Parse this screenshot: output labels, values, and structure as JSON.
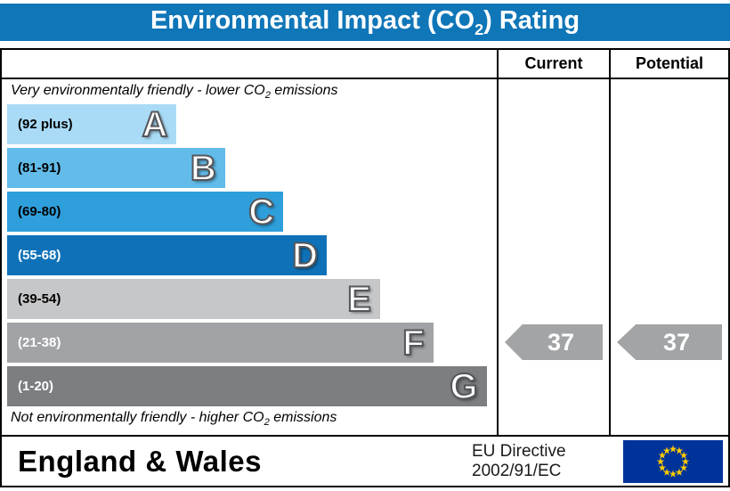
{
  "title": {
    "pre": "Environmental Impact (CO",
    "sub": "2",
    "post": ") Rating"
  },
  "columns": {
    "current": "Current",
    "potential": "Potential"
  },
  "top_note": {
    "pre": "Very environmentally friendly - lower CO",
    "sub": "2",
    "post": " emissions"
  },
  "bottom_note": {
    "pre": "Not environmentally friendly - higher CO",
    "sub": "2",
    "post": " emissions"
  },
  "bands": [
    {
      "range": "(92 plus)",
      "letter": "A",
      "color": "#a9dbf7",
      "text_color": "#000000",
      "width_pct": 35
    },
    {
      "range": "(81-91)",
      "letter": "B",
      "color": "#62bbe9",
      "text_color": "#000000",
      "width_pct": 45
    },
    {
      "range": "(69-80)",
      "letter": "C",
      "color": "#2f9fdb",
      "text_color": "#000000",
      "width_pct": 57
    },
    {
      "range": "(55-68)",
      "letter": "D",
      "color": "#0f72b8",
      "text_color": "#ffffff",
      "width_pct": 66
    },
    {
      "range": "(39-54)",
      "letter": "E",
      "color": "#c6c7c9",
      "text_color": "#000000",
      "width_pct": 77
    },
    {
      "range": "(21-38)",
      "letter": "F",
      "color": "#a2a3a7",
      "text_color": "#ffffff",
      "width_pct": 88
    },
    {
      "range": "(1-20)",
      "letter": "G",
      "color": "#7c7e80",
      "text_color": "#ffffff",
      "width_pct": 99
    }
  ],
  "ratings": {
    "current": "37",
    "potential": "37"
  },
  "footer": {
    "region": "England & Wales",
    "directive_line1": "EU Directive",
    "directive_line2": "2002/91/EC"
  },
  "colors": {
    "header_blue": "#0f76b8",
    "arrow_gray": "#a2a4a6",
    "flag_blue": "#003399",
    "star_yellow": "#ffcc00"
  },
  "chart_data": {
    "type": "bar",
    "title": "Environmental Impact (CO2) Rating",
    "categories": [
      "A (92 plus)",
      "B (81-91)",
      "C (69-80)",
      "D (55-68)",
      "E (39-54)",
      "F (21-38)",
      "G (1-20)"
    ],
    "values": [
      35,
      45,
      57,
      66,
      77,
      88,
      99
    ],
    "scale_range": [
      1,
      100
    ],
    "current_rating": 37,
    "current_band": "F",
    "potential_rating": 37,
    "potential_band": "F",
    "notes": [
      "Very environmentally friendly - lower CO2 emissions",
      "Not environmentally friendly - higher CO2 emissions"
    ],
    "legend_position": "none",
    "footer": "England & Wales | EU Directive 2002/91/EC"
  }
}
